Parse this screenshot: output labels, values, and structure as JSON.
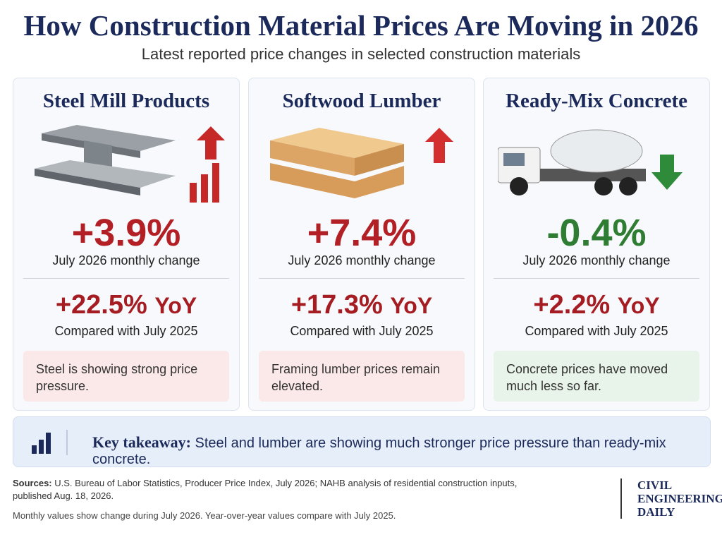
{
  "header": {
    "title": "How Construction Material Prices Are Moving in 2026",
    "subtitle": "Latest reported price changes in selected construction materials"
  },
  "cards": [
    {
      "title": "Steel Mill Products",
      "monthly_change": "+3.9%",
      "monthly_label": "July 2026 monthly change",
      "yoy_change": "+22.5%",
      "yoy_unit": "YoY",
      "yoy_label": "Compared with July 2025",
      "note": "Steel is showing strong price pressure."
    },
    {
      "title": "Softwood Lumber",
      "monthly_change": "+7.4%",
      "monthly_label": "July 2026 monthly change",
      "yoy_change": "+17.3%",
      "yoy_unit": "YoY",
      "yoy_label": "Compared with July 2025",
      "note": "Framing lumber prices remain elevated."
    },
    {
      "title": "Ready-Mix Concrete",
      "monthly_change": "-0.4%",
      "monthly_label": "July 2026 monthly change",
      "yoy_change": "+2.2%",
      "yoy_unit": "YoY",
      "yoy_label": "Compared with July 2025",
      "note": "Concrete prices have moved much less so far."
    }
  ],
  "takeaway": {
    "label": "Key takeaway:",
    "text": "Steel and lumber are showing much stronger price pressure than ready-mix concrete."
  },
  "sources": {
    "label": "Sources:",
    "text": "U.S. Bureau of Labor Statistics, Producer Price Index, July 2026; NAHB analysis of residential construction inputs, published Aug. 18, 2026.",
    "note": "Monthly values show change during July 2026. Year-over-year values compare with July 2025."
  },
  "logo": {
    "lines": [
      "CIVIL",
      "ENGINEERING",
      "DAILY"
    ]
  }
}
